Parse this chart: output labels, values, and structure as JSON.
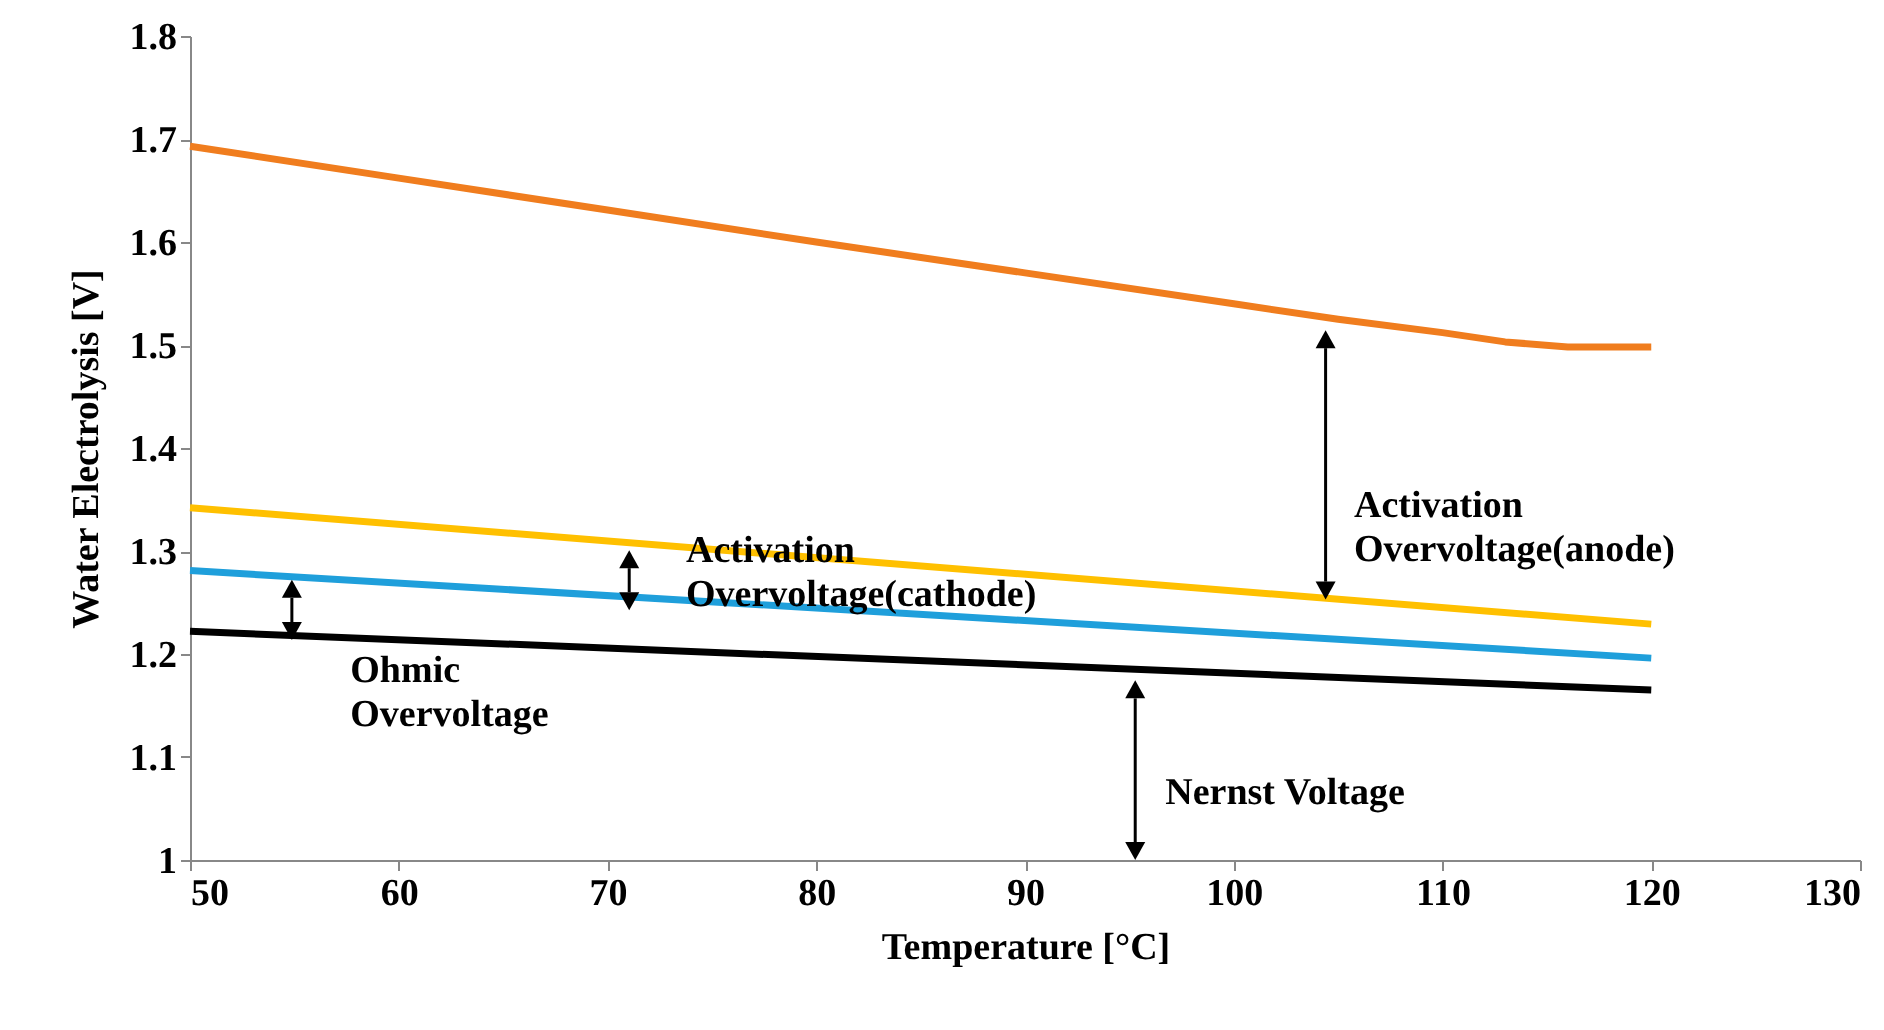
{
  "chart_data": {
    "type": "line",
    "xlabel": "Temperature [°C]",
    "ylabel": "Water Electrolysis [V]",
    "series": [
      {
        "color": "#f07d1e",
        "x": [
          50,
          60,
          70,
          80,
          90,
          100,
          105,
          110,
          113,
          116,
          120
        ],
        "values": [
          1.693,
          1.662,
          1.631,
          1.6,
          1.57,
          1.54,
          1.525,
          1.512,
          1.503,
          1.498,
          1.498
        ]
      },
      {
        "color": "#ffc000",
        "x": [
          50,
          120
        ],
        "values": [
          1.342,
          1.229
        ]
      },
      {
        "color": "#1f9fdb",
        "x": [
          50,
          120
        ],
        "values": [
          1.281,
          1.196
        ]
      },
      {
        "color": "#000000",
        "x": [
          50,
          120
        ],
        "values": [
          1.222,
          1.165
        ]
      }
    ],
    "xlim": [
      50,
      130
    ],
    "xticks": [
      50,
      60,
      70,
      80,
      90,
      100,
      110,
      120,
      130
    ],
    "ylim": [
      1,
      1.8
    ],
    "yticks": [
      1,
      {
        "value": 1.1,
        "label": "1.1"
      },
      1.2,
      1.3,
      1.4,
      1.5,
      1.6,
      1.7,
      1.8
    ],
    "grid": false,
    "legend": false,
    "marker": "none",
    "line_style": "solid",
    "annotations": [
      "Activation\nOvervoltage(anode)",
      "Activation\nOvervoltage(cathode)",
      "Ohmic\nOvervoltage",
      "Nernst Voltage"
    ]
  }
}
